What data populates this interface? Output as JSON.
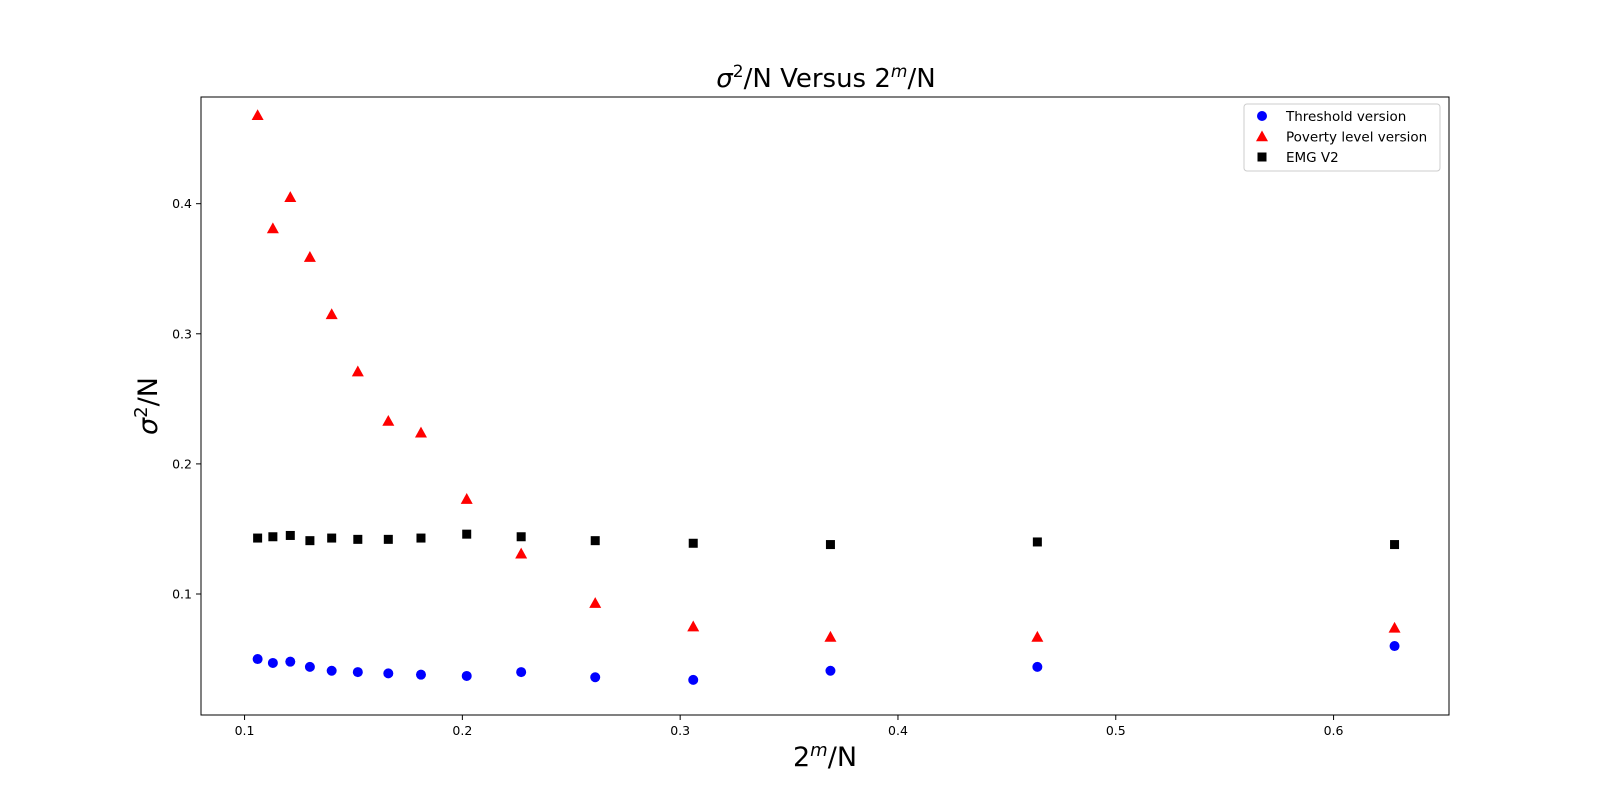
{
  "chart_data": {
    "type": "scatter",
    "title": "σ²/N Versus 2ᵐ/N",
    "title_parts": {
      "sigma": "σ",
      "sigma_exp": "2",
      "mid": "/N Versus 2",
      "m_exp": "m",
      "end": "/N"
    },
    "xlabel_parts": {
      "base": "2",
      "exp": "m",
      "end": "/N"
    },
    "ylabel_parts": {
      "sigma": "σ",
      "exp": "2",
      "end": "/N"
    },
    "xlim": [
      0.08,
      0.653
    ],
    "ylim": [
      0.007,
      0.482
    ],
    "xticks": [
      0.1,
      0.2,
      0.3,
      0.4,
      0.5,
      0.6
    ],
    "xtick_labels": [
      "0.1",
      "0.2",
      "0.3",
      "0.4",
      "0.5",
      "0.6"
    ],
    "yticks": [
      0.1,
      0.2,
      0.3,
      0.4
    ],
    "ytick_labels": [
      "0.1",
      "0.2",
      "0.3",
      "0.4"
    ],
    "grid": false,
    "legend_position": "top-right",
    "x": [
      0.106,
      0.113,
      0.121,
      0.13,
      0.14,
      0.152,
      0.166,
      0.181,
      0.202,
      0.227,
      0.261,
      0.306,
      0.369,
      0.464,
      0.628
    ],
    "series": [
      {
        "name": "Threshold version",
        "marker": "circle",
        "color": "#0000ff",
        "values": [
          0.05,
          0.047,
          0.048,
          0.044,
          0.041,
          0.04,
          0.039,
          0.038,
          0.037,
          0.04,
          0.036,
          0.034,
          0.041,
          0.044,
          0.06
        ]
      },
      {
        "name": "Poverty level version",
        "marker": "triangle",
        "color": "#ff0000",
        "values": [
          0.468,
          0.381,
          0.405,
          0.359,
          0.315,
          0.271,
          0.233,
          0.224,
          0.173,
          0.131,
          0.093,
          0.075,
          0.067,
          0.067,
          0.074
        ]
      },
      {
        "name": "EMG V2",
        "marker": "square",
        "color": "#000000",
        "values": [
          0.143,
          0.144,
          0.145,
          0.141,
          0.143,
          0.142,
          0.142,
          0.143,
          0.146,
          0.144,
          0.141,
          0.139,
          0.138,
          0.14,
          0.138
        ]
      }
    ]
  }
}
